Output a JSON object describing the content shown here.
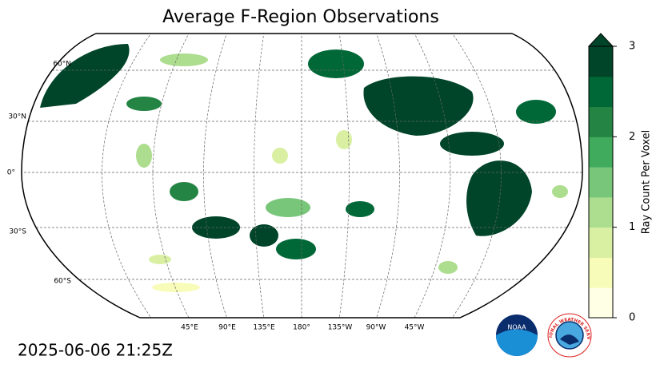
{
  "title": "Average F-Region Observations",
  "map": {
    "lat_labels": [
      "60°N",
      "30°N",
      "0°",
      "30°S",
      "60°S"
    ],
    "lon_labels": [
      "45°E",
      "90°E",
      "135°E",
      "180°",
      "135°W",
      "90°W",
      "45°W"
    ]
  },
  "colorbar": {
    "label": "Ray Count Per Voxel",
    "lim": [
      0,
      3
    ],
    "ticks": [
      0,
      1,
      2,
      3
    ],
    "extend": "max",
    "colors": [
      "#ffffe5",
      "#f7fcb9",
      "#d9f0a3",
      "#addd8e",
      "#78c679",
      "#41ab5d",
      "#238443",
      "#006837",
      "#004529"
    ]
  },
  "timestamp": "2025-06-06 21:25Z",
  "logos": {
    "noaa": "NOAA",
    "nws": "NATIONAL WEATHER SERVICE"
  }
}
